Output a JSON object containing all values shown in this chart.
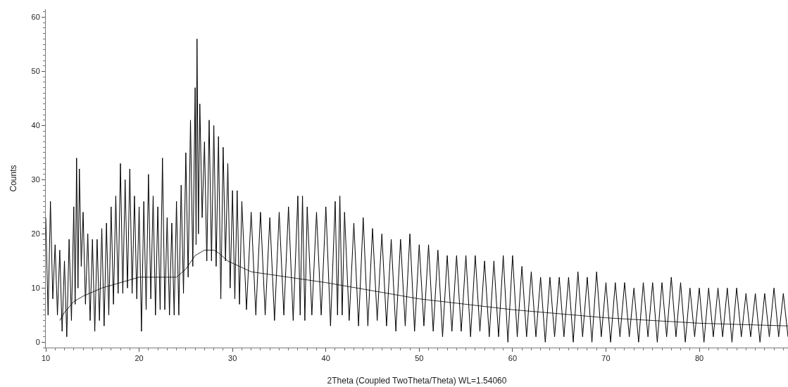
{
  "chart_data": {
    "type": "line",
    "xlabel": "2Theta (Coupled TwoTheta/Theta) WL=1.54060",
    "ylabel": "Counts",
    "xlim": [
      10,
      89.5
    ],
    "xticks": [
      10,
      20,
      30,
      40,
      50,
      60,
      70,
      80
    ],
    "ylim": [
      -1,
      61.5
    ],
    "yticks": [
      0,
      10,
      20,
      30,
      40,
      50,
      60
    ],
    "grid": false,
    "marker": "none",
    "line_style": "solid",
    "series": [
      {
        "color": "#000000",
        "x": [
          10,
          10.25,
          10.5,
          10.75,
          11,
          11.25,
          11.5,
          11.75,
          12,
          12.25,
          12.5,
          12.75,
          13,
          13.15,
          13.3,
          13.45,
          13.6,
          13.8,
          14,
          14.25,
          14.5,
          14.75,
          15,
          15.25,
          15.5,
          15.75,
          16,
          16.25,
          16.5,
          16.75,
          17,
          17.25,
          17.5,
          17.75,
          18,
          18.25,
          18.5,
          18.75,
          19,
          19.25,
          19.5,
          19.75,
          20,
          20.25,
          20.5,
          20.75,
          21,
          21.25,
          21.5,
          21.75,
          22,
          22.25,
          22.5,
          22.75,
          23,
          23.25,
          23.5,
          23.75,
          24,
          24.25,
          24.5,
          24.75,
          25,
          25.25,
          25.5,
          25.75,
          26,
          26.1,
          26.2,
          26.35,
          26.5,
          26.75,
          27,
          27.25,
          27.5,
          27.75,
          28,
          28.25,
          28.5,
          28.75,
          29,
          29.25,
          29.5,
          29.75,
          30,
          30.25,
          30.5,
          30.75,
          31,
          31.5,
          32,
          32.5,
          33,
          33.5,
          34,
          34.5,
          35,
          35.5,
          36,
          36.5,
          37,
          37.25,
          37.5,
          37.75,
          38,
          38.5,
          39,
          39.5,
          40,
          40.5,
          41,
          41.25,
          41.5,
          41.75,
          42,
          42.5,
          43,
          43.5,
          44,
          44.5,
          45,
          45.5,
          46,
          46.5,
          47,
          47.5,
          48,
          48.5,
          49,
          49.5,
          50,
          50.5,
          51,
          51.5,
          52,
          52.5,
          53,
          53.5,
          54,
          54.5,
          55,
          55.5,
          56,
          56.5,
          57,
          57.5,
          58,
          58.5,
          59,
          59.5,
          60,
          60.5,
          61,
          61.5,
          62,
          62.5,
          63,
          63.5,
          64,
          64.5,
          65,
          65.5,
          66,
          66.5,
          67,
          67.5,
          68,
          68.5,
          69,
          69.5,
          70,
          70.5,
          71,
          71.5,
          72,
          72.5,
          73,
          73.5,
          74,
          74.5,
          75,
          75.5,
          76,
          76.5,
          77,
          77.5,
          78,
          78.5,
          79,
          79.5,
          80,
          80.5,
          81,
          81.5,
          82,
          82.5,
          83,
          83.5,
          84,
          84.5,
          85,
          85.5,
          86,
          86.5,
          87,
          87.5,
          88,
          88.5,
          89,
          89.5
        ],
        "values": [
          23,
          5,
          26,
          8,
          18,
          5,
          17,
          2,
          15,
          1,
          19,
          4,
          25,
          7,
          34,
          10,
          32,
          14,
          24,
          7,
          20,
          4,
          19,
          2,
          19,
          4,
          21,
          3,
          22,
          5,
          25,
          7,
          27,
          9,
          33,
          9,
          30,
          10,
          32,
          9,
          27,
          8,
          25,
          2,
          26,
          6,
          31,
          8,
          27,
          5,
          25,
          6,
          34,
          6,
          23,
          5,
          22,
          5,
          26,
          5,
          29,
          9,
          35,
          12,
          41,
          14,
          47,
          18,
          56,
          20,
          44,
          23,
          37,
          15,
          41,
          15,
          40,
          14,
          38,
          8,
          36,
          15,
          33,
          10,
          28,
          8,
          28,
          7,
          26,
          6,
          24,
          5,
          24,
          5,
          23,
          4,
          24,
          5,
          25,
          4,
          27,
          5,
          27,
          4,
          25,
          5,
          24,
          5,
          25,
          3,
          26,
          5,
          27,
          5,
          24,
          4,
          22,
          3,
          23,
          3,
          21,
          4,
          20,
          3,
          19,
          2,
          19,
          3,
          20,
          2,
          18,
          3,
          18,
          2,
          17,
          1,
          16,
          2,
          16,
          2,
          16,
          1,
          16,
          2,
          15,
          1,
          15,
          1,
          16,
          0,
          16,
          1,
          14,
          1,
          13,
          1,
          12,
          0,
          12,
          1,
          12,
          1,
          12,
          0,
          13,
          1,
          12,
          0,
          13,
          1,
          11,
          0,
          11,
          1,
          11,
          1,
          10,
          0,
          11,
          1,
          11,
          0,
          11,
          1,
          12,
          1,
          11,
          0,
          10,
          1,
          10,
          0,
          10,
          1,
          10,
          1,
          10,
          0,
          10,
          1,
          9,
          1,
          9,
          0,
          9,
          1,
          10,
          1,
          9,
          1
        ]
      },
      {
        "color": "#000000",
        "x": [
          11.5,
          12,
          13,
          14,
          16,
          20,
          24,
          25,
          26,
          27,
          28,
          28.5,
          29.5,
          32,
          40,
          50,
          60,
          70,
          80,
          89.5
        ],
        "values": [
          4,
          5.5,
          7.5,
          8.5,
          10,
          12,
          12,
          13.5,
          16,
          17,
          17,
          16.5,
          15,
          13,
          11,
          8,
          6,
          4.5,
          3.5,
          3
        ]
      }
    ]
  }
}
